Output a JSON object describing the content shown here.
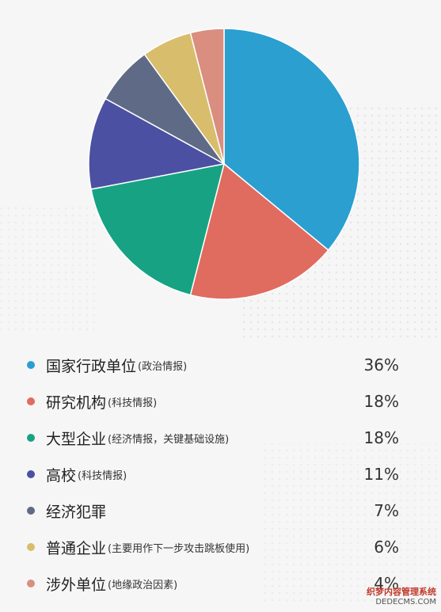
{
  "chart_data": {
    "type": "pie",
    "slices": [
      {
        "label": "国家行政单位",
        "note": "(政治情报)",
        "value": 36,
        "value_label": "36%",
        "color": "#2a9fd0"
      },
      {
        "label": "研究机构",
        "note": "(科技情报)",
        "value": 18,
        "value_label": "18%",
        "color": "#e06b5f"
      },
      {
        "label": "大型企业",
        "note": "(经济情报，关键基础设施)",
        "value": 18,
        "value_label": "18%",
        "color": "#17a383"
      },
      {
        "label": "高校",
        "note": "(科技情报)",
        "value": 11,
        "value_label": "11%",
        "color": "#4b50a2"
      },
      {
        "label": "经济犯罪",
        "note": "",
        "value": 7,
        "value_label": "7%",
        "color": "#5f6a86"
      },
      {
        "label": "普通企业",
        "note": "(主要用作下一步攻击跳板使用)",
        "value": 6,
        "value_label": "6%",
        "color": "#d8bd6c"
      },
      {
        "label": "涉外单位",
        "note": "(地缘政治因素)",
        "value": 4,
        "value_label": "4%",
        "color": "#d98e80"
      }
    ],
    "start_angle_deg": 0,
    "direction": "clockwise"
  },
  "watermark": {
    "line1": "织梦内容管理系统",
    "line2": "DEDECMS.COM"
  }
}
